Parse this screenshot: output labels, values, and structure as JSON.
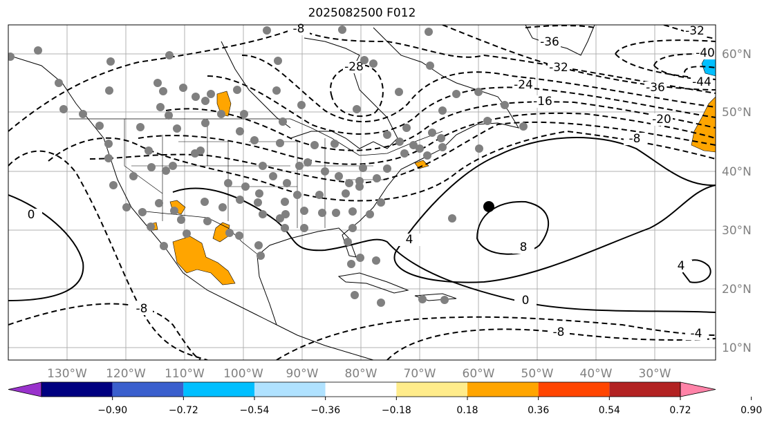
{
  "title": "2025082500 F012",
  "axes": {
    "lon_labels": [
      "130°W",
      "120°W",
      "110°W",
      "100°W",
      "90°W",
      "80°W",
      "70°W",
      "60°W",
      "50°W",
      "40°W",
      "30°W"
    ],
    "lat_labels": [
      "60°N",
      "50°N",
      "40°N",
      "30°N",
      "20°N",
      "10°N"
    ]
  },
  "contour_labels": [
    "-8",
    "-28",
    "-36",
    "-32",
    "-40",
    "-44",
    "-36",
    "-24",
    "-16",
    "-20",
    "-8",
    "-32",
    "0",
    "4",
    "8",
    "0",
    "-8",
    "-4",
    "4",
    "-8"
  ],
  "colorbar": {
    "ticks": [
      "−0.90",
      "−0.72",
      "−0.54",
      "−0.36",
      "−0.18",
      "0.18",
      "0.36",
      "0.54",
      "0.72",
      "0.90"
    ],
    "colors": [
      "#9932cc",
      "#000080",
      "#3a5fcd",
      "#00bfff",
      "#b0e2ff",
      "#ffffff",
      "#ffec8b",
      "#ffa500",
      "#ff4500",
      "#b22222",
      "#ff83a8"
    ]
  },
  "colors": {
    "station": "#808080",
    "grid": "#b0b0b0",
    "fill_positive": "#ffa500",
    "fill_negative": "#00bfff"
  }
}
